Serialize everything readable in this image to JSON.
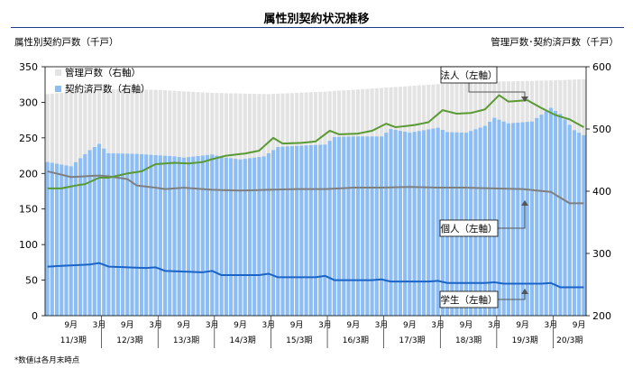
{
  "page": {
    "title": "属性別契約状況推移",
    "left_unit": "属性別契約戸数（千戸）",
    "right_unit": "管理戸数･契約済戸数（千戸）",
    "footnote": "*数値は各月末時点"
  },
  "colors": {
    "managed": "#e3e3e3",
    "contracted": "#8dbdf5",
    "corporate": "#5a9a32",
    "individual": "#7f7f7f",
    "student": "#1a64c8",
    "title_rule": "#1f3a8a"
  },
  "chart_data": {
    "type": "bar",
    "title": "属性別契約状況推移",
    "ylabel": "属性別契約戸数（千戸）",
    "y2label": "管理戸数･契約済戸数（千戸）",
    "ylim": [
      0,
      350
    ],
    "yticks": [
      0,
      50,
      100,
      150,
      200,
      250,
      300,
      350
    ],
    "y2lim": [
      200,
      600
    ],
    "y2ticks": [
      200,
      300,
      400,
      500,
      600
    ],
    "month_ticks": [
      "9月",
      "3月",
      "9月",
      "3月",
      "9月",
      "3月",
      "9月",
      "3月",
      "9月",
      "3月",
      "9月",
      "3月",
      "9月",
      "3月",
      "9月",
      "3月",
      "9月",
      "3月",
      "9月",
      "3月",
      "9月"
    ],
    "periods": [
      "11/3期",
      "12/3期",
      "13/3期",
      "14/3期",
      "15/3期",
      "16/3期",
      "17/3期",
      "18/3期",
      "19/3期",
      "20/3期"
    ],
    "x_start": "2010-04",
    "x_end": "2019-10",
    "legend_placement": "top-left",
    "legend": [
      {
        "name": "管理戸数（右軸）",
        "color": "#e3e3e3"
      },
      {
        "name": "契約済戸数（右軸）",
        "color": "#8dbdf5"
      }
    ],
    "annotations": [
      {
        "text": "法人（左軸）",
        "series": "corporate"
      },
      {
        "text": "個人（左軸）",
        "series": "individual"
      },
      {
        "text": "学生（左軸）",
        "series": "student"
      }
    ],
    "series": [
      {
        "name": "管理戸数（右軸）",
        "axis": "right",
        "kind": "bar",
        "key": "managed",
        "keypoints": [
          [
            "2010-04",
            556
          ],
          [
            "2011-03",
            564
          ],
          [
            "2012-03",
            563
          ],
          [
            "2013-03",
            558
          ],
          [
            "2014-03",
            556
          ],
          [
            "2015-03",
            560
          ],
          [
            "2016-03",
            566
          ],
          [
            "2017-03",
            572
          ],
          [
            "2018-03",
            576
          ],
          [
            "2019-03",
            578
          ],
          [
            "2019-10",
            580
          ]
        ]
      },
      {
        "name": "契約済戸数（右軸）",
        "axis": "right",
        "kind": "bar",
        "key": "contracted",
        "keypoints": [
          [
            "2010-04",
            447
          ],
          [
            "2010-09",
            440
          ],
          [
            "2011-01",
            466
          ],
          [
            "2011-03",
            476
          ],
          [
            "2011-05",
            461
          ],
          [
            "2011-11",
            460
          ],
          [
            "2012-03",
            458
          ],
          [
            "2012-07",
            456
          ],
          [
            "2012-09",
            454
          ],
          [
            "2013-03",
            459
          ],
          [
            "2013-05",
            455
          ],
          [
            "2013-09",
            451
          ],
          [
            "2014-02",
            456
          ],
          [
            "2014-05",
            471
          ],
          [
            "2014-07",
            472
          ],
          [
            "2015-03",
            475
          ],
          [
            "2015-05",
            487
          ],
          [
            "2015-09",
            488
          ],
          [
            "2016-03",
            488
          ],
          [
            "2016-05",
            500
          ],
          [
            "2016-09",
            494
          ],
          [
            "2016-12",
            498
          ],
          [
            "2017-03",
            502
          ],
          [
            "2017-05",
            495
          ],
          [
            "2017-09",
            494
          ],
          [
            "2018-01",
            505
          ],
          [
            "2018-03",
            518
          ],
          [
            "2018-06",
            509
          ],
          [
            "2018-11",
            512
          ],
          [
            "2019-03",
            534
          ],
          [
            "2019-05",
            524
          ],
          [
            "2019-08",
            498
          ],
          [
            "2019-10",
            490
          ]
        ]
      },
      {
        "name": "法人",
        "axis": "left",
        "kind": "line",
        "key": "corporate",
        "label": "法人（左軸）",
        "keypoints": [
          [
            "2010-04",
            179
          ],
          [
            "2010-07",
            179
          ],
          [
            "2010-10",
            183
          ],
          [
            "2010-12",
            185
          ],
          [
            "2011-03",
            194
          ],
          [
            "2011-05",
            194
          ],
          [
            "2011-09",
            200
          ],
          [
            "2011-12",
            203
          ],
          [
            "2012-03",
            213
          ],
          [
            "2012-07",
            215
          ],
          [
            "2012-10",
            214
          ],
          [
            "2013-01",
            216
          ],
          [
            "2013-03",
            220
          ],
          [
            "2013-06",
            225
          ],
          [
            "2013-10",
            228
          ],
          [
            "2014-01",
            232
          ],
          [
            "2014-04",
            250
          ],
          [
            "2014-06",
            242
          ],
          [
            "2014-10",
            243
          ],
          [
            "2015-01",
            245
          ],
          [
            "2015-04",
            260
          ],
          [
            "2015-06",
            255
          ],
          [
            "2015-10",
            256
          ],
          [
            "2016-01",
            260
          ],
          [
            "2016-04",
            270
          ],
          [
            "2016-06",
            265
          ],
          [
            "2016-10",
            268
          ],
          [
            "2017-01",
            272
          ],
          [
            "2017-04",
            289
          ],
          [
            "2017-07",
            284
          ],
          [
            "2017-10",
            285
          ],
          [
            "2018-01",
            290
          ],
          [
            "2018-04",
            310
          ],
          [
            "2018-06",
            301
          ],
          [
            "2018-10",
            303
          ],
          [
            "2019-01",
            292
          ],
          [
            "2019-04",
            282
          ],
          [
            "2019-07",
            276
          ],
          [
            "2019-10",
            265
          ]
        ]
      },
      {
        "name": "個人",
        "axis": "left",
        "kind": "line",
        "key": "individual",
        "label": "個人（左軸）",
        "keypoints": [
          [
            "2010-04",
            203
          ],
          [
            "2010-09",
            195
          ],
          [
            "2011-03",
            197
          ],
          [
            "2011-05",
            196
          ],
          [
            "2011-09",
            192
          ],
          [
            "2011-11",
            183
          ],
          [
            "2012-03",
            180
          ],
          [
            "2012-05",
            178
          ],
          [
            "2012-09",
            180
          ],
          [
            "2013-03",
            177
          ],
          [
            "2013-09",
            176
          ],
          [
            "2014-03",
            177
          ],
          [
            "2014-09",
            178
          ],
          [
            "2015-03",
            178
          ],
          [
            "2015-09",
            180
          ],
          [
            "2016-03",
            180
          ],
          [
            "2016-09",
            181
          ],
          [
            "2017-03",
            180
          ],
          [
            "2017-09",
            180
          ],
          [
            "2018-03",
            179
          ],
          [
            "2018-09",
            178
          ],
          [
            "2019-03",
            174
          ],
          [
            "2019-07",
            158
          ],
          [
            "2019-10",
            158
          ]
        ]
      },
      {
        "name": "学生",
        "axis": "left",
        "kind": "line",
        "key": "student",
        "label": "学生（左軸）",
        "keypoints": [
          [
            "2010-04",
            69
          ],
          [
            "2011-01",
            72
          ],
          [
            "2011-03",
            74
          ],
          [
            "2011-05",
            69
          ],
          [
            "2012-01",
            67
          ],
          [
            "2012-03",
            68
          ],
          [
            "2012-05",
            63
          ],
          [
            "2013-01",
            61
          ],
          [
            "2013-03",
            63
          ],
          [
            "2013-05",
            57
          ],
          [
            "2014-01",
            57
          ],
          [
            "2014-03",
            59
          ],
          [
            "2014-05",
            54
          ],
          [
            "2015-01",
            54
          ],
          [
            "2015-03",
            56
          ],
          [
            "2015-05",
            50
          ],
          [
            "2016-01",
            50
          ],
          [
            "2016-03",
            51
          ],
          [
            "2016-05",
            48
          ],
          [
            "2017-01",
            48
          ],
          [
            "2017-03",
            49
          ],
          [
            "2017-05",
            46
          ],
          [
            "2018-01",
            46
          ],
          [
            "2018-03",
            47
          ],
          [
            "2018-05",
            45
          ],
          [
            "2019-01",
            45
          ],
          [
            "2019-03",
            46
          ],
          [
            "2019-05",
            40
          ],
          [
            "2019-10",
            40
          ]
        ]
      }
    ]
  }
}
